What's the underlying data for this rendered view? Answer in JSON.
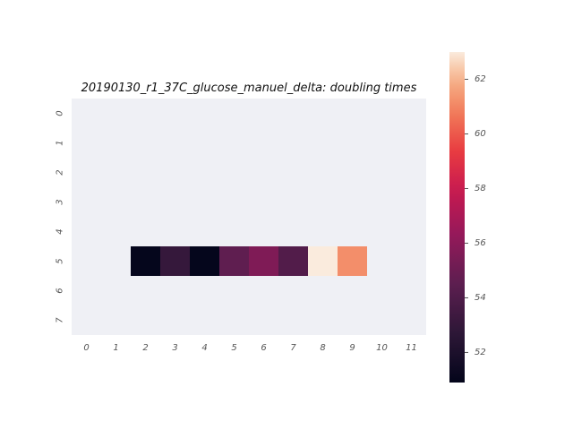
{
  "chart_data": {
    "type": "heatmap",
    "title": "20190130_r1_37C_glucose_manuel_delta: doubling times",
    "x_categories": [
      "0",
      "1",
      "2",
      "3",
      "4",
      "5",
      "6",
      "7",
      "8",
      "9",
      "10",
      "11"
    ],
    "y_categories": [
      "0",
      "1",
      "2",
      "3",
      "4",
      "5",
      "6",
      "7"
    ],
    "cells": [
      {
        "row": 5,
        "col": 2,
        "value": 51.0
      },
      {
        "row": 5,
        "col": 3,
        "value": 53.0
      },
      {
        "row": 5,
        "col": 4,
        "value": 51.0
      },
      {
        "row": 5,
        "col": 5,
        "value": 54.6
      },
      {
        "row": 5,
        "col": 6,
        "value": 55.6
      },
      {
        "row": 5,
        "col": 7,
        "value": 54.1
      },
      {
        "row": 5,
        "col": 8,
        "value": 63.0
      },
      {
        "row": 5,
        "col": 9,
        "value": 61.2
      }
    ],
    "missing_color": "#eff0f5",
    "colormap": "rocket",
    "colorbar": {
      "range": [
        50.9,
        63.0
      ],
      "ticks": [
        52,
        54,
        56,
        58,
        60,
        62
      ],
      "tick_labels": [
        "52",
        "54",
        "56",
        "58",
        "60",
        "62"
      ]
    }
  }
}
